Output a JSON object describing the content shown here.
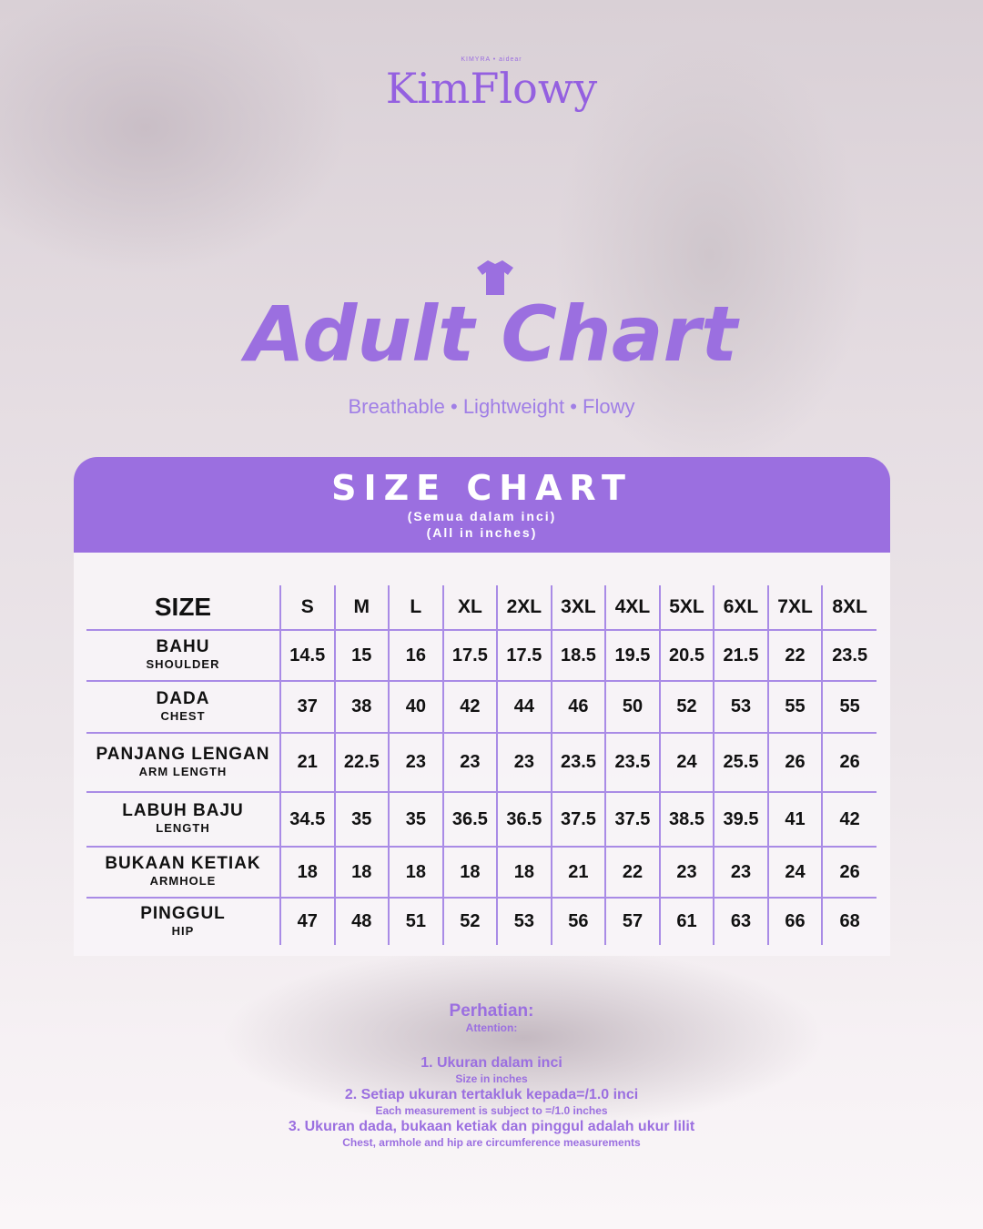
{
  "brand": {
    "sub": "KIMYRA • aidear",
    "name": "KimFlowy"
  },
  "title": "Adult Chart",
  "tagline": "Breathable • Lightweight • Flowy",
  "accent": "#9b6fe0",
  "size_chart": {
    "heading": "SIZE CHART",
    "sub1": "(Semua dalam inci)",
    "sub2": "(All in inches)",
    "corner": "SIZE",
    "sizes": [
      "S",
      "M",
      "L",
      "XL",
      "2XL",
      "3XL",
      "4XL",
      "5XL",
      "6XL",
      "7XL",
      "8XL"
    ],
    "rows": [
      {
        "label": "BAHU",
        "en": "SHOULDER",
        "values": [
          "14.5",
          "15",
          "16",
          "17.5",
          "17.5",
          "18.5",
          "19.5",
          "20.5",
          "21.5",
          "22",
          "23.5"
        ]
      },
      {
        "label": "DADA",
        "en": "CHEST",
        "values": [
          "37",
          "38",
          "40",
          "42",
          "44",
          "46",
          "50",
          "52",
          "53",
          "55",
          "55"
        ]
      },
      {
        "label": "PANJANG LENGAN",
        "en": "ARM LENGTH",
        "values": [
          "21",
          "22.5",
          "23",
          "23",
          "23",
          "23.5",
          "23.5",
          "24",
          "25.5",
          "26",
          "26"
        ]
      },
      {
        "label": "LABUH BAJU",
        "en": "LENGTH",
        "values": [
          "34.5",
          "35",
          "35",
          "36.5",
          "36.5",
          "37.5",
          "37.5",
          "38.5",
          "39.5",
          "41",
          "42"
        ]
      },
      {
        "label": "BUKAAN KETIAK",
        "en": "ARMHOLE",
        "values": [
          "18",
          "18",
          "18",
          "18",
          "18",
          "21",
          "22",
          "23",
          "23",
          "24",
          "26"
        ]
      },
      {
        "label": "PINGGUL",
        "en": "HIP",
        "values": [
          "47",
          "48",
          "51",
          "52",
          "53",
          "56",
          "57",
          "61",
          "63",
          "66",
          "68"
        ]
      }
    ]
  },
  "notes": {
    "title": "Perhatian:",
    "title_en": "Attention:",
    "items": [
      {
        "ms": "1. Ukuran dalam inci",
        "en": "Size in inches"
      },
      {
        "ms": "2. Setiap ukuran tertakluk kepada=/1.0 inci",
        "en": "Each measurement is subject to =/1.0 inches"
      },
      {
        "ms": "3. Ukuran dada, bukaan ketiak dan pinggul adalah ukur lilit",
        "en": "Chest, armhole and hip are circumference measurements"
      }
    ]
  }
}
